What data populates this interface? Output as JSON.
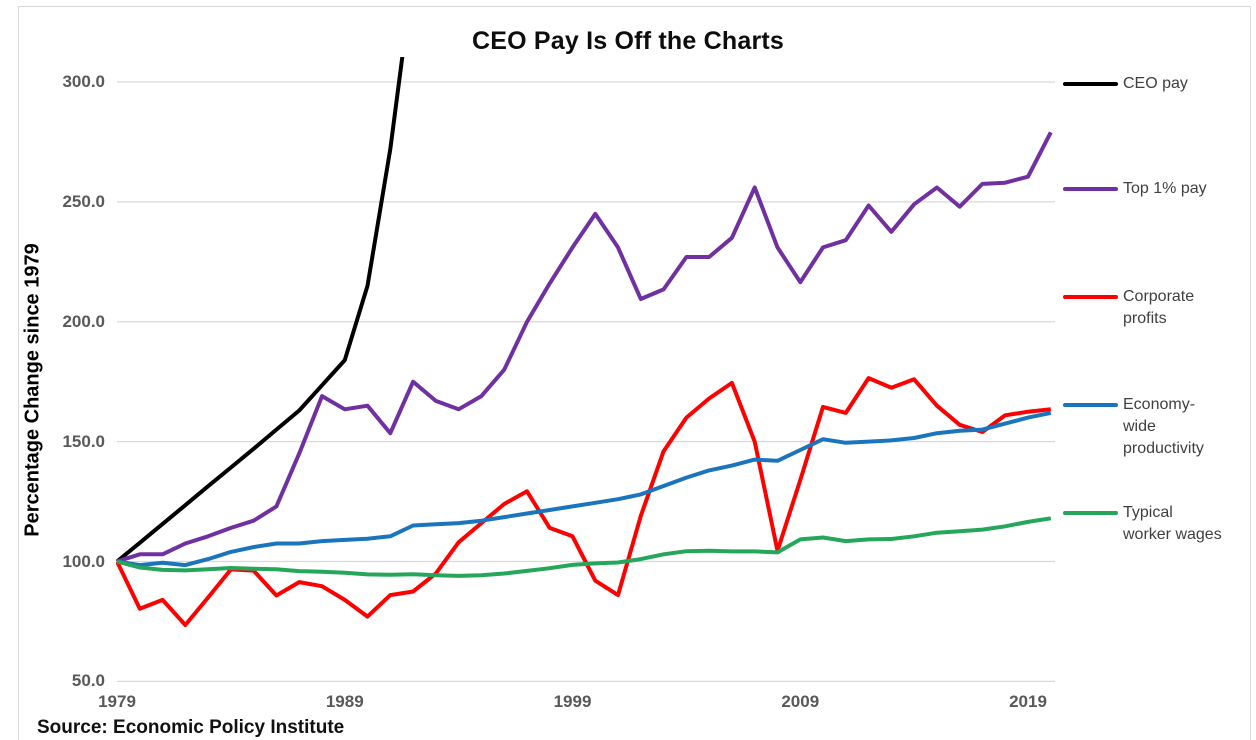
{
  "title": "CEO Pay Is Off the Charts",
  "source": "Source: Economic Policy Institute",
  "y_axis": {
    "label": "Percentage Change since 1979",
    "ticks": [
      {
        "label": "300.0",
        "value": 300
      },
      {
        "label": "250.0",
        "value": 250
      },
      {
        "label": "200.0",
        "value": 200
      },
      {
        "label": "150.0",
        "value": 150
      },
      {
        "label": "100.0",
        "value": 100
      },
      {
        "label": "50.0",
        "value": 50
      }
    ]
  },
  "x_axis": {
    "ticks": [
      {
        "label": "1979",
        "value": 1979
      },
      {
        "label": "1989",
        "value": 1989
      },
      {
        "label": "1999",
        "value": 1999
      },
      {
        "label": "2009",
        "value": 2009
      },
      {
        "label": "2019",
        "value": 2019
      }
    ]
  },
  "legend": {
    "items": [
      {
        "label": "CEO pay",
        "color": "#000000"
      },
      {
        "label": "Top 1% pay",
        "color": "#7030a0"
      },
      {
        "label": "Corporate\nprofits",
        "color": "#fe0000"
      },
      {
        "label": "Economy-\nwide\nproductivity",
        "color": "#1b75bc"
      },
      {
        "label": "Typical\nworker wages",
        "color": "#26a65b"
      }
    ]
  },
  "colors": {
    "ceo_pay": "#000000",
    "top_1_pay": "#7030a0",
    "corporate_profits": "#fe0000",
    "productivity": "#1b75bc",
    "worker_wages": "#26a65b",
    "gridline": "#d9d9d9",
    "axis_text": "#595959"
  },
  "chart_data": {
    "type": "line",
    "title": "CEO Pay Is Off the Charts",
    "ylabel": "Percentage Change since 1979",
    "ylim": [
      50,
      300
    ],
    "xlim": [
      1979,
      2020
    ],
    "grid": "horizontal",
    "legend_position": "right",
    "note": "CEO pay line exits the top of the plot (off the charts) around 1991-1992",
    "x": [
      1979,
      1980,
      1981,
      1982,
      1983,
      1984,
      1985,
      1986,
      1987,
      1988,
      1989,
      1990,
      1991,
      1992,
      1993,
      1994,
      1995,
      1996,
      1997,
      1998,
      1999,
      2000,
      2001,
      2002,
      2003,
      2004,
      2005,
      2006,
      2007,
      2008,
      2009,
      2010,
      2011,
      2012,
      2013,
      2014,
      2015,
      2016,
      2017,
      2018,
      2019,
      2020
    ],
    "series": [
      {
        "name": "CEO pay",
        "color": "#000000",
        "values": [
          100,
          107.8,
          115.7,
          123.5,
          131.4,
          139.2,
          147,
          155,
          163,
          173.5,
          184,
          215,
          272,
          345,
          null,
          null,
          null,
          null,
          null,
          null,
          null,
          null,
          null,
          null,
          null,
          null,
          null,
          null,
          null,
          null,
          null,
          null,
          null,
          null,
          null,
          null,
          null,
          null,
          null,
          null,
          null,
          null
        ]
      },
      {
        "name": "Top 1% pay",
        "color": "#7030a0",
        "values": [
          100,
          103,
          103,
          107.5,
          110.5,
          114,
          117,
          123,
          145,
          169,
          163.5,
          165,
          153.5,
          175,
          167,
          163.5,
          169,
          180,
          200,
          216,
          231,
          245,
          231,
          209.5,
          213.5,
          227,
          227,
          235,
          256,
          231,
          216.5,
          231,
          234,
          248.5,
          237.5,
          249,
          256,
          248,
          257.5,
          258,
          260.5,
          279
        ]
      },
      {
        "name": "Corporate profits",
        "color": "#fe0000",
        "values": [
          100,
          80.3,
          84,
          73.5,
          85,
          96.7,
          96.2,
          85.8,
          91.4,
          89.7,
          84,
          77,
          86,
          87.5,
          95,
          108,
          116,
          124,
          129.3,
          114,
          110.5,
          92,
          86,
          119,
          146,
          160,
          168,
          174.5,
          150,
          104.5,
          134,
          164.5,
          162,
          176.5,
          172.5,
          176,
          165,
          157,
          154,
          161,
          162.5,
          163.5
        ]
      },
      {
        "name": "Economy-wide productivity",
        "color": "#1b75bc",
        "values": [
          100,
          98.5,
          99.5,
          98.5,
          101,
          104,
          106,
          107.5,
          107.5,
          108.5,
          109,
          109.5,
          110.5,
          115,
          115.5,
          116,
          117,
          118.5,
          120,
          121.5,
          123,
          124.5,
          126,
          128,
          131.5,
          135,
          138,
          140,
          142.5,
          142,
          146.5,
          151,
          149.5,
          150,
          150.5,
          151.5,
          153.5,
          154.5,
          155,
          157.5,
          160,
          162
        ]
      },
      {
        "name": "Typical worker wages",
        "color": "#26a65b",
        "values": [
          100,
          97.5,
          96.5,
          96.3,
          96.8,
          97.3,
          97,
          96.8,
          96,
          95.7,
          95.3,
          94.6,
          94.5,
          94.7,
          94.3,
          94,
          94.3,
          95,
          96.1,
          97.2,
          98.6,
          99.2,
          99.6,
          101,
          103,
          104.3,
          104.5,
          104.2,
          104.2,
          103.8,
          109.2,
          110,
          108.5,
          109.2,
          109.4,
          110.5,
          112,
          112.6,
          113.3,
          114.7,
          116.5,
          118
        ]
      }
    ]
  }
}
